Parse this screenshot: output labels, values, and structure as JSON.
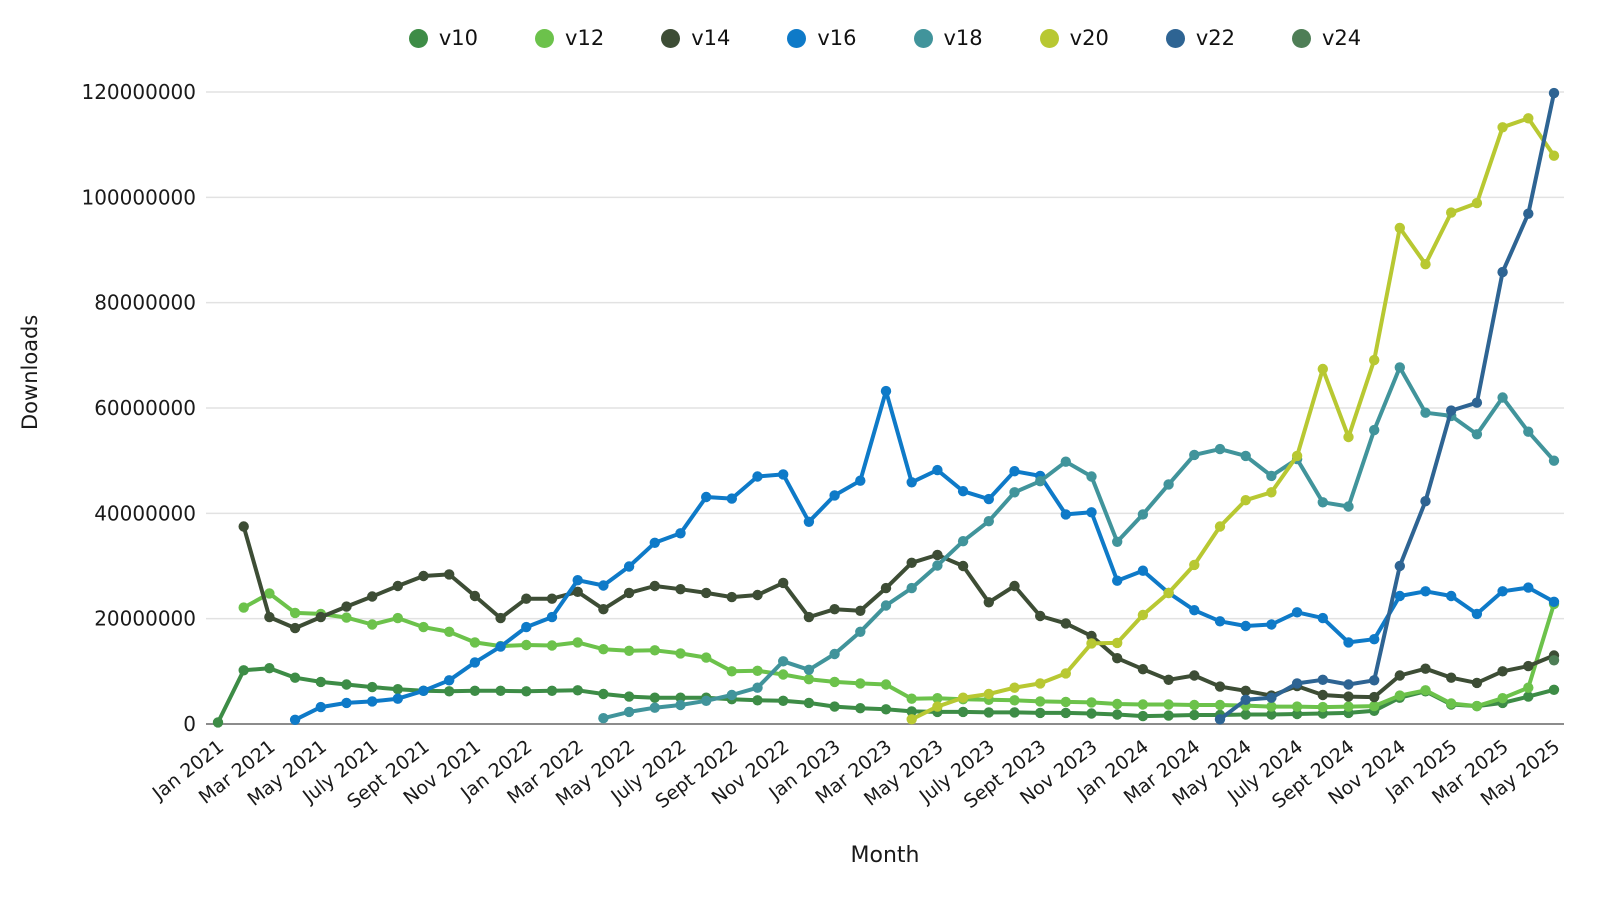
{
  "chart_data": {
    "type": "line",
    "title": "",
    "xlabel": "Month",
    "ylabel": "Downloads",
    "unit": "downloads per month",
    "value_scale": 1000000,
    "ylim": [
      0,
      120000000
    ],
    "y_ticks": [
      0,
      20000000,
      40000000,
      60000000,
      80000000,
      100000000,
      120000000
    ],
    "x_tick_step": 2,
    "grid": "horizontal",
    "legend_position": "top-center",
    "x": [
      "Jan 2021",
      "Feb 2021",
      "Mar 2021",
      "Apr 2021",
      "May 2021",
      "June 2021",
      "July 2021",
      "Aug 2021",
      "Sept 2021",
      "Oct 2021",
      "Nov 2021",
      "Dec 2021",
      "Jan 2022",
      "Feb 2022",
      "Mar 2022",
      "Apr 2022",
      "May 2022",
      "June 2022",
      "July 2022",
      "Aug 2022",
      "Sept 2022",
      "Oct 2022",
      "Nov 2022",
      "Dec 2022",
      "Jan 2023",
      "Feb 2023",
      "Mar 2023",
      "Apr 2023",
      "May 2023",
      "June 2023",
      "July 2023",
      "Aug 2023",
      "Sept 2023",
      "Oct 2023",
      "Nov 2023",
      "Dec 2023",
      "Jan 2024",
      "Feb 2024",
      "Mar 2024",
      "Apr 2024",
      "May 2024",
      "June 2024",
      "July 2024",
      "Aug 2024",
      "Sept 2024",
      "Oct 2024",
      "Nov 2024",
      "Dec 2024",
      "Jan 2025",
      "Feb 2025",
      "Mar 2025",
      "Apr 2025",
      "May 2025"
    ],
    "series": [
      {
        "name": "v10",
        "color": "#3d8c46",
        "values_millions": [
          0.3,
          10.2,
          10.6,
          8.8,
          8.0,
          7.5,
          7.0,
          6.6,
          6.3,
          6.2,
          6.3,
          6.3,
          6.2,
          6.3,
          6.4,
          5.7,
          5.2,
          5.0,
          5.0,
          5.0,
          4.7,
          4.5,
          4.4,
          4.0,
          3.3,
          3.0,
          2.8,
          2.4,
          2.3,
          2.3,
          2.2,
          2.2,
          2.1,
          2.1,
          2.0,
          1.8,
          1.5,
          1.6,
          1.7,
          1.7,
          1.8,
          1.8,
          1.9,
          2.0,
          2.1,
          2.5,
          5.0,
          6.2,
          3.7,
          3.4,
          4.0,
          5.2,
          6.5
        ]
      },
      {
        "name": "v12",
        "color": "#6cc24b",
        "values_millions": [
          null,
          22.1,
          24.8,
          21.1,
          20.9,
          20.2,
          18.9,
          20.1,
          18.4,
          17.5,
          15.5,
          14.8,
          15.0,
          14.9,
          15.5,
          14.2,
          13.9,
          14.0,
          13.4,
          12.6,
          10.0,
          10.1,
          9.4,
          8.5,
          8.0,
          7.7,
          7.5,
          4.8,
          4.9,
          4.7,
          4.6,
          4.5,
          4.3,
          4.2,
          4.1,
          3.8,
          3.7,
          3.7,
          3.6,
          3.6,
          3.5,
          3.3,
          3.3,
          3.2,
          3.3,
          3.4,
          5.4,
          6.4,
          3.9,
          3.4,
          4.9,
          6.9,
          22.8
        ]
      },
      {
        "name": "v14",
        "color": "#3d4d35",
        "values_millions": [
          null,
          37.5,
          20.3,
          18.2,
          20.3,
          22.3,
          24.2,
          26.2,
          28.1,
          28.4,
          24.3,
          20.1,
          23.8,
          23.8,
          25.1,
          21.8,
          24.9,
          26.2,
          25.6,
          24.9,
          24.1,
          24.5,
          26.8,
          20.3,
          21.8,
          21.5,
          25.8,
          30.6,
          32.1,
          30.0,
          23.1,
          26.2,
          20.5,
          19.1,
          16.7,
          12.5,
          10.4,
          8.4,
          9.2,
          7.1,
          6.3,
          5.4,
          7.2,
          5.5,
          5.2,
          5.1,
          9.2,
          10.5,
          8.8,
          7.8,
          10.0,
          11.0,
          13.0
        ]
      },
      {
        "name": "v16",
        "color": "#0e7ac8",
        "values_millions": [
          null,
          null,
          null,
          0.8,
          3.2,
          4.0,
          4.3,
          4.8,
          6.3,
          8.3,
          11.7,
          14.7,
          18.4,
          20.3,
          27.3,
          26.3,
          29.9,
          34.4,
          36.2,
          43.1,
          42.8,
          47.0,
          47.4,
          38.4,
          43.4,
          46.2,
          63.2,
          45.9,
          48.2,
          44.2,
          42.7,
          48.0,
          47.1,
          39.8,
          40.2,
          27.2,
          29.1,
          24.9,
          21.6,
          19.5,
          18.6,
          18.9,
          21.2,
          20.1,
          15.5,
          16.1,
          24.3,
          25.2,
          24.3,
          20.9,
          25.2,
          25.9,
          23.2
        ]
      },
      {
        "name": "v18",
        "color": "#41949b",
        "values_millions": [
          null,
          null,
          null,
          null,
          null,
          null,
          null,
          null,
          null,
          null,
          null,
          null,
          null,
          null,
          null,
          1.1,
          2.3,
          3.1,
          3.6,
          4.4,
          5.5,
          6.9,
          11.9,
          10.3,
          13.3,
          17.5,
          22.5,
          25.8,
          30.1,
          34.7,
          38.5,
          44.0,
          46.1,
          49.8,
          47.0,
          34.6,
          39.8,
          45.5,
          51.1,
          52.2,
          50.9,
          47.1,
          50.3,
          42.1,
          41.3,
          55.8,
          67.7,
          59.1,
          58.5,
          55.0,
          62.0,
          55.5,
          50.0
        ]
      },
      {
        "name": "v20",
        "color": "#b8c832",
        "values_millions": [
          null,
          null,
          null,
          null,
          null,
          null,
          null,
          null,
          null,
          null,
          null,
          null,
          null,
          null,
          null,
          null,
          null,
          null,
          null,
          null,
          null,
          null,
          null,
          null,
          null,
          null,
          null,
          0.9,
          3.3,
          5.0,
          5.7,
          6.9,
          7.7,
          9.6,
          15.3,
          15.4,
          20.7,
          24.9,
          30.2,
          37.5,
          42.5,
          44.0,
          50.9,
          67.4,
          54.5,
          69.1,
          94.2,
          87.3,
          97.1,
          98.9,
          113.3,
          115.0,
          107.9
        ]
      },
      {
        "name": "v22",
        "color": "#2e6493",
        "values_millions": [
          null,
          null,
          null,
          null,
          null,
          null,
          null,
          null,
          null,
          null,
          null,
          null,
          null,
          null,
          null,
          null,
          null,
          null,
          null,
          null,
          null,
          null,
          null,
          null,
          null,
          null,
          null,
          null,
          null,
          null,
          null,
          null,
          null,
          null,
          null,
          null,
          null,
          null,
          null,
          0.9,
          4.6,
          5.0,
          7.7,
          8.4,
          7.5,
          8.3,
          30.0,
          42.3,
          59.5,
          61.0,
          85.8,
          96.9,
          119.8
        ]
      },
      {
        "name": "v24",
        "color": "#4e7e56",
        "values_millions": [
          null,
          null,
          null,
          null,
          null,
          null,
          null,
          null,
          null,
          null,
          null,
          null,
          null,
          null,
          null,
          null,
          null,
          null,
          null,
          null,
          null,
          null,
          null,
          null,
          null,
          null,
          null,
          null,
          null,
          null,
          null,
          null,
          null,
          null,
          null,
          null,
          null,
          null,
          null,
          null,
          null,
          null,
          null,
          null,
          null,
          null,
          null,
          null,
          null,
          null,
          null,
          null,
          12.1
        ]
      }
    ],
    "x_tick_labels_shown": [
      "Jan 2021",
      "Mar 2021",
      "May 2021",
      "July 2021",
      "Sept 2021",
      "Nov 2021",
      "Jan 2022",
      "Mar 2022",
      "May 2022",
      "July 2022",
      "Sept 2022",
      "Nov 2022",
      "Jan 2023",
      "Mar 2023",
      "May 2023",
      "July 2023",
      "Sept 2023",
      "Nov 2023",
      "Jan 2024",
      "Mar 2024",
      "May 2024",
      "July 2024",
      "Sept 2024",
      "Nov 2024",
      "Jan 2025",
      "Mar 2025",
      "May 2025"
    ]
  },
  "style": {
    "background": "#ffffff",
    "gridline_color": "#e2e2e2",
    "axis_line_color": "#8c8c8c",
    "text_color": "#1a1a1a"
  }
}
